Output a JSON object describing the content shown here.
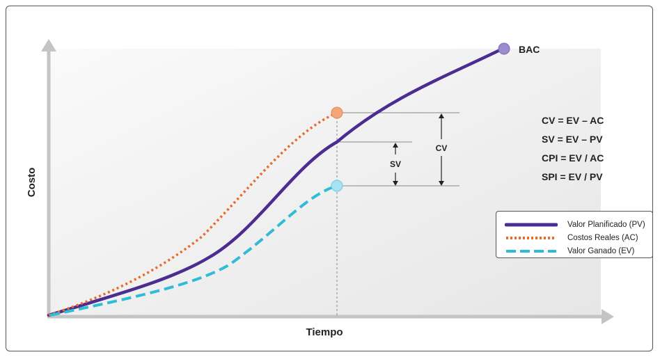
{
  "diagram": {
    "y_axis_label": "Costo",
    "x_axis_label": "Tiempo",
    "endpoint_label": "BAC",
    "formulas": [
      "CV = EV – AC",
      "SV = EV – PV",
      "CPI = EV / AC",
      "SPI = EV / PV"
    ],
    "dimension_labels": {
      "sv": "SV",
      "cv": "CV"
    },
    "colors": {
      "pv": "#4b2c91",
      "ac": "#e86a2b",
      "ev": "#2fbcd6",
      "bac_marker": "#9b8ccf",
      "ac_marker": "#f4a57a",
      "ev_marker": "#a8e2f2",
      "plot_bg": "#efefef",
      "axis": "#c4c4c4"
    }
  },
  "legend": {
    "items": [
      {
        "label": "Valor Planificado (PV)",
        "color": "#4b2c91",
        "style": "solid"
      },
      {
        "label": "Costos Reales (AC)",
        "color": "#e86a2b",
        "style": "dotted"
      },
      {
        "label": "Valor Ganado (EV)",
        "color": "#2fbcd6",
        "style": "dashed"
      }
    ]
  }
}
